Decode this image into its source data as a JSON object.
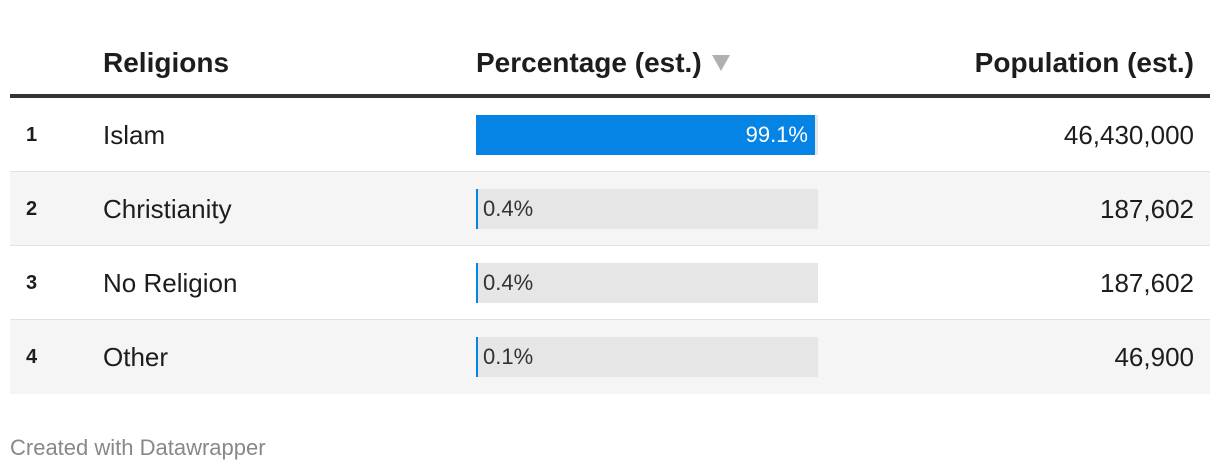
{
  "chart_data": {
    "type": "table",
    "columns": {
      "rank": "",
      "religion": "Religions",
      "percentage": "Percentage (est.)",
      "population": "Population (est.)"
    },
    "sorted_by": "percentage",
    "sort_direction": "descending",
    "bar_max": 100,
    "bar_color": "#0584e5",
    "rows": [
      {
        "rank": "1",
        "religion": "Islam",
        "percentage": 99.1,
        "percentage_label": "99.1%",
        "population": "46,430,000"
      },
      {
        "rank": "2",
        "religion": "Christianity",
        "percentage": 0.4,
        "percentage_label": "0.4%",
        "population": "187,602"
      },
      {
        "rank": "3",
        "religion": "No Religion",
        "percentage": 0.4,
        "percentage_label": "0.4%",
        "population": "187,602"
      },
      {
        "rank": "4",
        "religion": "Other",
        "percentage": 0.1,
        "percentage_label": "0.1%",
        "population": "46,900"
      }
    ]
  },
  "footer": {
    "credit": "Created with Datawrapper"
  },
  "icons": {
    "sort": "sort-desc-arrow-icon"
  }
}
